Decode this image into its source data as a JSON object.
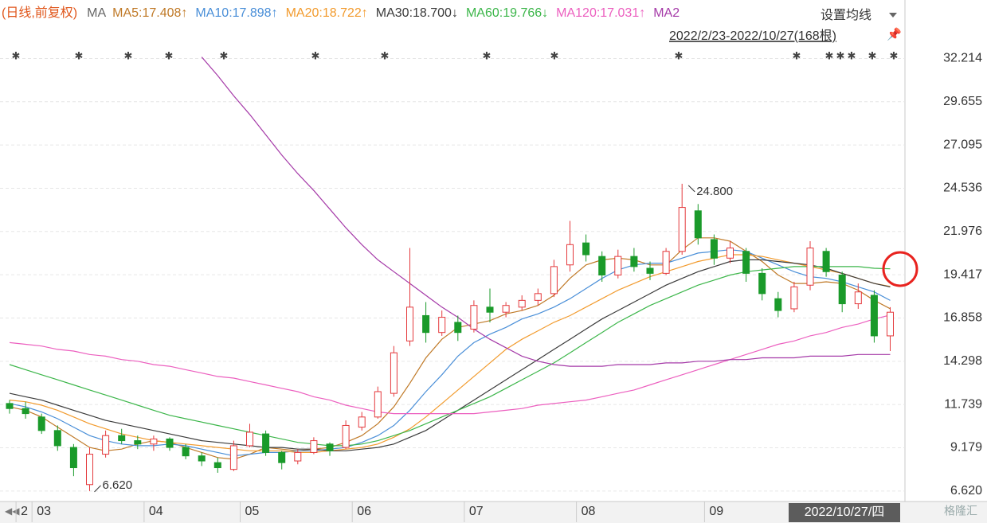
{
  "chart_data": {
    "type": "candlestick",
    "title": "(日线,前复权)",
    "ma_label": "MA",
    "settings_button": "设置均线",
    "date_range": "2022/2/23-2022/10/27(168根)",
    "cursor_date": "2022/10/27/四",
    "watermark": "格隆汇",
    "up_color": "#e4393c",
    "down_color": "#1a9a2a",
    "categories": [
      null,
      "2",
      "03",
      null,
      null,
      null,
      null,
      null,
      null,
      "04",
      null,
      null,
      null,
      null,
      null,
      "05",
      null,
      null,
      null,
      null,
      null,
      null,
      "06",
      null,
      null,
      null,
      null,
      null,
      null,
      "07",
      null,
      null,
      null,
      null,
      null,
      null,
      "08",
      null,
      null,
      null,
      null,
      null,
      null,
      null,
      "09",
      null,
      null,
      null,
      null,
      null,
      null,
      null,
      null,
      null,
      null,
      null
    ],
    "open": [
      11.8,
      11.5,
      11.0,
      10.2,
      9.2,
      7.0,
      8.8,
      9.9,
      9.6,
      9.4,
      9.7,
      9.2,
      8.7,
      8.3,
      7.9,
      9.3,
      10.0,
      8.9,
      8.4,
      8.9,
      9.4,
      9.2,
      10.4,
      11.0,
      12.4,
      15.5,
      17.0,
      16.0,
      16.6,
      16.2,
      17.5,
      17.2,
      17.5,
      17.9,
      18.3,
      20.0,
      21.3,
      20.5,
      19.4,
      20.5,
      19.8,
      19.5,
      20.8,
      23.2,
      21.5,
      20.4,
      20.8,
      19.5,
      18.0,
      17.4,
      18.8,
      20.8,
      19.4,
      17.7,
      18.2,
      15.8
    ],
    "high": [
      12.0,
      11.9,
      11.2,
      10.5,
      9.4,
      9.2,
      10.2,
      10.3,
      9.9,
      9.9,
      9.8,
      9.4,
      8.9,
      8.6,
      9.6,
      10.6,
      10.2,
      9.0,
      9.1,
      9.8,
      9.5,
      10.8,
      11.3,
      12.8,
      15.2,
      21.0,
      17.8,
      17.3,
      17.0,
      17.9,
      18.6,
      17.8,
      18.2,
      18.6,
      20.3,
      22.6,
      21.8,
      20.8,
      20.9,
      21.0,
      20.2,
      21.0,
      24.8,
      23.6,
      21.8,
      21.4,
      21.0,
      19.8,
      18.4,
      19.0,
      21.4,
      21.0,
      19.6,
      18.9,
      18.5,
      17.5
    ],
    "low": [
      11.2,
      10.9,
      10.0,
      9.0,
      7.5,
      6.62,
      8.6,
      9.4,
      9.1,
      9.0,
      9.0,
      8.5,
      8.1,
      7.7,
      7.8,
      9.2,
      8.7,
      7.9,
      8.2,
      8.8,
      8.7,
      9.1,
      10.2,
      10.9,
      12.2,
      15.2,
      15.4,
      15.8,
      15.5,
      16.0,
      16.6,
      16.9,
      17.3,
      17.6,
      18.1,
      19.6,
      20.2,
      19.0,
      19.2,
      19.6,
      19.1,
      19.4,
      20.6,
      21.2,
      20.0,
      20.1,
      19.0,
      17.9,
      16.9,
      17.2,
      18.5,
      19.3,
      17.2,
      17.4,
      15.4,
      14.9
    ],
    "close": [
      11.5,
      11.2,
      10.2,
      9.3,
      8.0,
      8.8,
      9.9,
      9.6,
      9.4,
      9.7,
      9.2,
      8.7,
      8.4,
      8.0,
      9.3,
      10.1,
      8.9,
      8.3,
      8.9,
      9.6,
      9.0,
      10.5,
      11.0,
      12.5,
      14.8,
      17.5,
      16.0,
      16.9,
      16.0,
      17.6,
      17.2,
      17.6,
      17.9,
      18.3,
      19.9,
      21.2,
      20.6,
      19.4,
      20.5,
      19.9,
      19.5,
      20.8,
      23.4,
      21.6,
      20.4,
      21.0,
      19.5,
      18.3,
      17.3,
      18.7,
      21.0,
      19.6,
      17.7,
      18.4,
      15.8,
      17.2
    ],
    "annotations": [
      {
        "text": "24.800",
        "value": 24.8,
        "index": 42
      },
      {
        "text": "6.620",
        "value": 6.62,
        "index": 5
      }
    ],
    "series": [
      {
        "name": "MA5:17.408↑",
        "color": "#c07a28",
        "values": [
          11.6,
          11.4,
          11.0,
          10.4,
          9.8,
          9.2,
          9.0,
          9.1,
          9.4,
          9.6,
          9.5,
          9.2,
          8.9,
          8.6,
          8.5,
          8.8,
          9.2,
          9.1,
          9.0,
          9.1,
          9.2,
          9.5,
          9.9,
          10.6,
          11.6,
          13.0,
          14.5,
          15.6,
          16.3,
          16.5,
          16.7,
          17.1,
          17.3,
          17.6,
          18.2,
          19.2,
          20.0,
          20.3,
          20.4,
          20.3,
          20.0,
          20.0,
          20.9,
          21.6,
          21.6,
          21.4,
          20.8,
          20.2,
          19.4,
          18.9,
          18.9,
          19.0,
          18.9,
          18.5,
          17.9,
          17.408
        ]
      },
      {
        "name": "MA10:17.898↑",
        "color": "#4a8fd8",
        "values": [
          11.8,
          11.6,
          11.3,
          10.9,
          10.4,
          9.9,
          9.6,
          9.4,
          9.3,
          9.3,
          9.4,
          9.3,
          9.1,
          8.9,
          8.7,
          8.8,
          8.9,
          8.9,
          9.0,
          9.0,
          9.1,
          9.2,
          9.5,
          9.9,
          10.5,
          11.4,
          12.5,
          13.5,
          14.6,
          15.4,
          15.9,
          16.3,
          16.8,
          17.1,
          17.5,
          18.0,
          18.6,
          19.2,
          19.7,
          20.0,
          20.1,
          20.1,
          20.4,
          20.7,
          20.8,
          20.9,
          20.8,
          20.4,
          20.0,
          19.6,
          19.3,
          19.2,
          19.0,
          18.7,
          18.4,
          17.898
        ]
      },
      {
        "name": "MA20:18.722↑",
        "color": "#f29b2e",
        "values": [
          12.0,
          11.9,
          11.7,
          11.4,
          11.0,
          10.6,
          10.3,
          10.0,
          9.8,
          9.6,
          9.5,
          9.4,
          9.3,
          9.2,
          9.1,
          9.0,
          9.0,
          9.0,
          8.9,
          8.9,
          9.0,
          9.1,
          9.2,
          9.4,
          9.8,
          10.3,
          11.0,
          11.8,
          12.6,
          13.4,
          14.2,
          15.0,
          15.6,
          16.1,
          16.6,
          17.0,
          17.5,
          18.0,
          18.5,
          18.9,
          19.3,
          19.6,
          19.9,
          20.2,
          20.4,
          20.6,
          20.6,
          20.5,
          20.3,
          20.1,
          19.9,
          19.7,
          19.5,
          19.2,
          18.9,
          18.722
        ]
      },
      {
        "name": "MA30:18.700↓",
        "color": "#3a3a3a",
        "values": [
          12.4,
          12.2,
          12.0,
          11.7,
          11.4,
          11.1,
          10.8,
          10.6,
          10.4,
          10.2,
          10.0,
          9.8,
          9.6,
          9.5,
          9.4,
          9.3,
          9.2,
          9.2,
          9.1,
          9.1,
          9.0,
          9.0,
          9.1,
          9.2,
          9.4,
          9.8,
          10.2,
          10.8,
          11.4,
          12.0,
          12.6,
          13.2,
          13.8,
          14.4,
          15.0,
          15.6,
          16.2,
          16.8,
          17.3,
          17.8,
          18.3,
          18.8,
          19.2,
          19.6,
          19.9,
          20.2,
          20.3,
          20.3,
          20.2,
          20.1,
          20.0,
          19.8,
          19.5,
          19.2,
          18.9,
          18.7
        ]
      },
      {
        "name": "MA60:19.766↓",
        "color": "#3cb64a",
        "values": [
          14.1,
          13.8,
          13.5,
          13.2,
          12.9,
          12.6,
          12.3,
          12.0,
          11.7,
          11.4,
          11.1,
          10.9,
          10.7,
          10.5,
          10.3,
          10.1,
          9.9,
          9.7,
          9.5,
          9.4,
          9.3,
          9.3,
          9.4,
          9.6,
          9.9,
          10.2,
          10.6,
          11.0,
          11.4,
          11.8,
          12.2,
          12.7,
          13.2,
          13.7,
          14.2,
          14.8,
          15.4,
          16.0,
          16.6,
          17.1,
          17.6,
          18.0,
          18.4,
          18.8,
          19.1,
          19.4,
          19.6,
          19.7,
          19.8,
          19.9,
          19.9,
          19.9,
          19.9,
          19.9,
          19.8,
          19.766
        ]
      },
      {
        "name": "MA120:17.031↑",
        "color": "#ec5fbf",
        "values": [
          15.4,
          15.3,
          15.2,
          15.0,
          14.9,
          14.7,
          14.6,
          14.4,
          14.3,
          14.1,
          14.0,
          13.8,
          13.6,
          13.4,
          13.3,
          13.1,
          12.9,
          12.7,
          12.5,
          12.2,
          12.0,
          11.7,
          11.5,
          11.3,
          11.2,
          11.2,
          11.2,
          11.2,
          11.2,
          11.2,
          11.3,
          11.4,
          11.5,
          11.7,
          11.8,
          11.9,
          12.0,
          12.2,
          12.4,
          12.6,
          12.9,
          13.2,
          13.5,
          13.8,
          14.1,
          14.4,
          14.7,
          15.0,
          15.3,
          15.5,
          15.8,
          16.0,
          16.3,
          16.5,
          16.8,
          17.031
        ]
      },
      {
        "name": "MA2",
        "color": "#a53aa8",
        "values": [
          null,
          null,
          null,
          null,
          null,
          null,
          null,
          null,
          null,
          null,
          null,
          null,
          32.3,
          31.2,
          30.0,
          28.9,
          27.7,
          26.5,
          25.4,
          24.4,
          23.3,
          22.2,
          21.2,
          20.3,
          19.6,
          18.9,
          18.2,
          17.5,
          16.9,
          16.2,
          15.6,
          15.1,
          14.6,
          14.3,
          14.1,
          14.0,
          14.0,
          14.0,
          14.1,
          14.1,
          14.1,
          14.2,
          14.2,
          14.3,
          14.3,
          14.4,
          14.4,
          14.5,
          14.5,
          14.5,
          14.6,
          14.6,
          14.6,
          14.7,
          14.7,
          14.7
        ]
      }
    ],
    "ylim": [
      6.0,
      32.8
    ],
    "yticks": [
      32.214,
      29.655,
      27.095,
      24.536,
      21.976,
      19.417,
      16.858,
      14.298,
      11.739,
      9.179,
      {
        "value": 6.62,
        "label": "6.620"
      }
    ],
    "grid": true
  }
}
